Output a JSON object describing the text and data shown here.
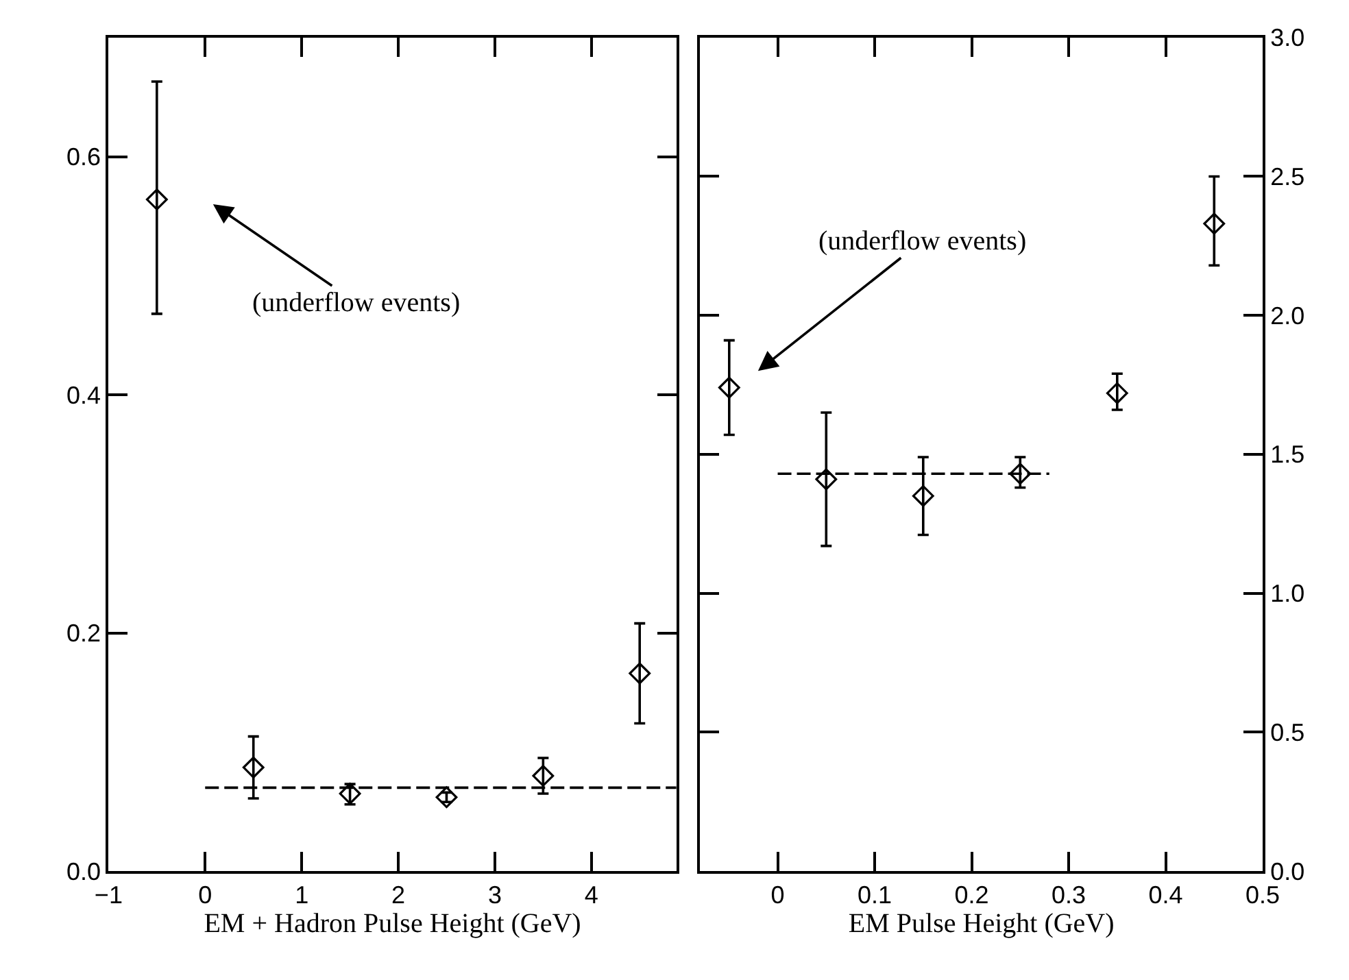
{
  "chart_data": [
    {
      "type": "scatter",
      "xlabel": "EM + Hadron Pulse Height (GeV)",
      "xlim": [
        -1,
        4.88
      ],
      "ylim": [
        0,
        0.7
      ],
      "xticks": [
        -1,
        0,
        1,
        2,
        3,
        4
      ],
      "yticks": [
        {
          "value": 0,
          "label": "0.0"
        },
        0.2,
        0.4,
        0.6
      ],
      "series": [
        {
          "color": "#000000",
          "marker": "diamond",
          "x": [
            -0.5,
            0.5,
            1.5,
            2.5,
            3.5,
            4.5
          ],
          "values": [
            0.564,
            0.087,
            0.065,
            0.062,
            0.08,
            0.166
          ],
          "errors": [
            [
              0.468,
              0.663
            ],
            [
              0.061,
              0.113
            ],
            [
              0.056,
              0.073
            ],
            [
              0.058,
              0.066
            ],
            [
              0.065,
              0.095
            ],
            [
              0.124,
              0.208
            ]
          ]
        },
        {
          "type": "line",
          "color": "#000000",
          "line_style": "dashed",
          "x": [
            0,
            4.88
          ],
          "values": [
            0.07,
            0.07
          ]
        }
      ],
      "annotations": [
        "(underflow events)"
      ]
    },
    {
      "type": "scatter",
      "xlabel": "EM Pulse Height (GeV)",
      "xlim": [
        -0.08,
        0.5
      ],
      "ylim": [
        0,
        3.0
      ],
      "xticks": [
        0,
        0.1,
        0.2,
        0.3,
        0.4,
        0.5
      ],
      "yticks": [
        {
          "value": 0,
          "label": "0.0"
        },
        0.5,
        {
          "value": 1,
          "label": "1.0"
        },
        1.5,
        {
          "value": 2,
          "label": "2.0"
        },
        2.5,
        {
          "value": 3,
          "label": "3.0"
        }
      ],
      "series": [
        {
          "color": "#000000",
          "marker": "diamond",
          "x": [
            -0.05,
            0.05,
            0.15,
            0.25,
            0.35,
            0.45
          ],
          "values": [
            1.74,
            1.41,
            1.35,
            1.43,
            1.72,
            2.33
          ],
          "errors": [
            [
              1.57,
              1.91
            ],
            [
              1.17,
              1.65
            ],
            [
              1.21,
              1.49
            ],
            [
              1.38,
              1.49
            ],
            [
              1.66,
              1.79
            ],
            [
              2.18,
              2.5
            ]
          ]
        },
        {
          "type": "line",
          "color": "#000000",
          "line_style": "dashed",
          "x": [
            0,
            0.28
          ],
          "values": [
            1.43,
            1.43
          ]
        }
      ],
      "annotations": [
        "(underflow events)"
      ]
    }
  ]
}
